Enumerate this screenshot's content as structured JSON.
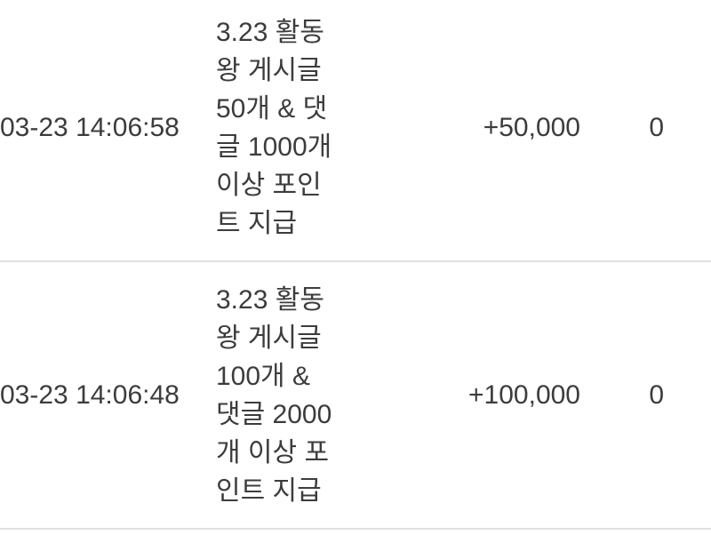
{
  "table": {
    "name": "point-history",
    "rows": [
      {
        "datetime": "03-23 14:06:58",
        "description": "3.23 활동왕 게시글 50개 & 댓글 1000개 이상 포인트 지급",
        "description_lines": [
          "3.23 활동",
          "왕 게시글",
          "50개 & 댓",
          "글 1000개",
          "이상 포인",
          "트 지급"
        ],
        "points": "+50,000",
        "balance": "0"
      },
      {
        "datetime": "03-23 14:06:48",
        "description": "3.23 활동왕 게시글 100개 & 댓글 2000개 이상 포인트 지급",
        "description_lines": [
          "3.23 활동",
          "왕 게시글",
          "100개 &",
          "댓글 2000",
          "개 이상 포",
          "인트 지급"
        ],
        "points": "+100,000",
        "balance": "0"
      }
    ]
  },
  "colors": {
    "text": "#3c3c3c",
    "divider": "#e1e1e1",
    "background": "#ffffff"
  }
}
